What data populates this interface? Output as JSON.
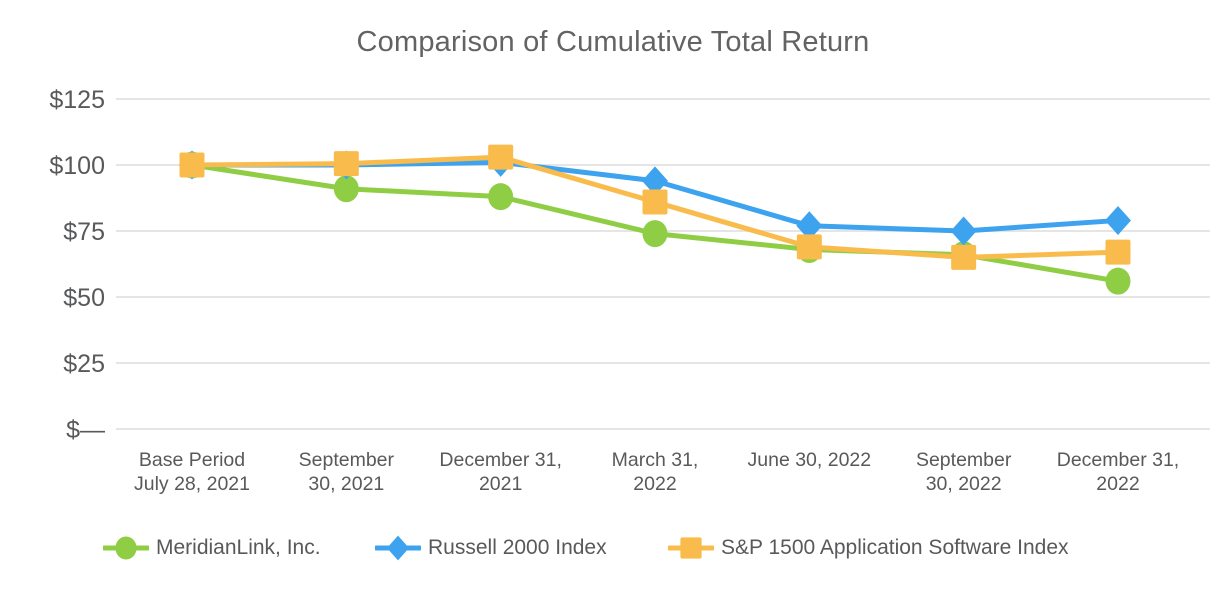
{
  "chart_data": {
    "type": "line",
    "title": "Comparison of Cumulative Total Return",
    "x_categories": [
      "Base Period\nJuly 28, 2021",
      "September\n30, 2021",
      "December 31,\n2021",
      "March 31,\n2022",
      "June 30, 2022",
      "September\n30, 2022",
      "December 31,\n2022"
    ],
    "y_ticks": [
      {
        "label": "$125",
        "value": 125
      },
      {
        "label": "$100",
        "value": 100
      },
      {
        "label": "$75",
        "value": 75
      },
      {
        "label": "$50",
        "value": 50
      },
      {
        "label": "$25",
        "value": 25
      },
      {
        "label": "$—",
        "value": 0
      }
    ],
    "ylim": [
      0,
      125
    ],
    "grid": "horizontal",
    "legend_position": "bottom",
    "series": [
      {
        "name": "MeridianLink, Inc.",
        "marker": "circle",
        "color": "#8FCE44",
        "values": [
          100,
          91,
          88,
          74,
          68,
          66,
          56
        ]
      },
      {
        "name": "Russell 2000 Index",
        "marker": "diamond",
        "color": "#3EA3EF",
        "values": [
          100,
          100,
          101,
          94,
          77,
          75,
          79
        ]
      },
      {
        "name": "S&P 1500 Application Software Index",
        "marker": "square",
        "color": "#F9BC4C",
        "values": [
          100,
          100.5,
          103,
          86,
          69,
          65,
          67
        ]
      }
    ]
  },
  "colors": {
    "grid": "#E5E5E5",
    "axis_text": "#58595B",
    "title_text": "#636363"
  }
}
